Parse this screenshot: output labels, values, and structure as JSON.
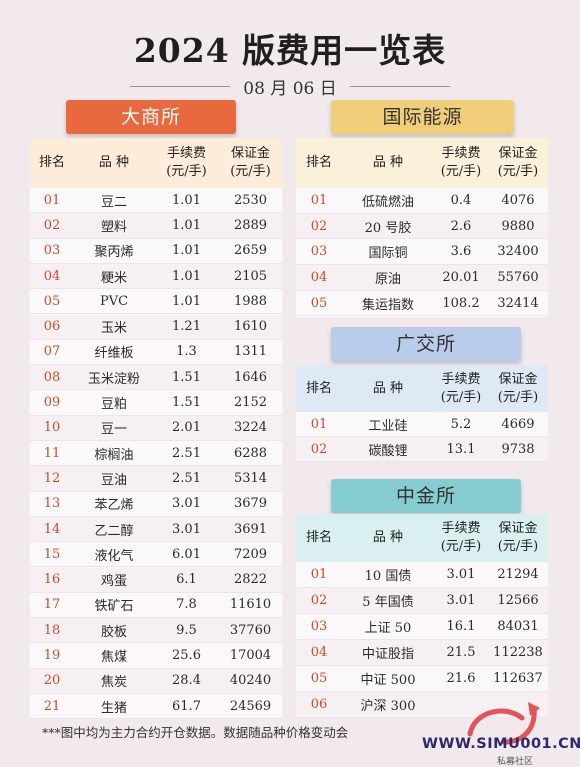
{
  "title": "2024 版费用一览表",
  "date": "08 月 06 日",
  "dalian": {
    "name": "大商所",
    "headers": {
      "rank": "排名",
      "variety": "品 种",
      "fee": [
        "手续费",
        "(元/手)"
      ],
      "margin": [
        "保证金",
        "(元/手)"
      ]
    },
    "rows": [
      {
        "rank": "01",
        "variety": "豆二",
        "fee": "1.01",
        "margin": "2530"
      },
      {
        "rank": "02",
        "variety": "塑料",
        "fee": "1.01",
        "margin": "2889"
      },
      {
        "rank": "03",
        "variety": "聚丙烯",
        "fee": "1.01",
        "margin": "2659"
      },
      {
        "rank": "04",
        "variety": "粳米",
        "fee": "1.01",
        "margin": "2105"
      },
      {
        "rank": "05",
        "variety": "PVC",
        "fee": "1.01",
        "margin": "1988"
      },
      {
        "rank": "06",
        "variety": "玉米",
        "fee": "1.21",
        "margin": "1610"
      },
      {
        "rank": "07",
        "variety": "纤维板",
        "fee": "1.3",
        "margin": "1311"
      },
      {
        "rank": "08",
        "variety": "玉米淀粉",
        "fee": "1.51",
        "margin": "1646"
      },
      {
        "rank": "09",
        "variety": "豆粕",
        "fee": "1.51",
        "margin": "2152"
      },
      {
        "rank": "10",
        "variety": "豆一",
        "fee": "2.01",
        "margin": "3224"
      },
      {
        "rank": "11",
        "variety": "棕榈油",
        "fee": "2.51",
        "margin": "6288"
      },
      {
        "rank": "12",
        "variety": "豆油",
        "fee": "2.51",
        "margin": "5314"
      },
      {
        "rank": "13",
        "variety": "苯乙烯",
        "fee": "3.01",
        "margin": "3679"
      },
      {
        "rank": "14",
        "variety": "乙二醇",
        "fee": "3.01",
        "margin": "3691"
      },
      {
        "rank": "15",
        "variety": "液化气",
        "fee": "6.01",
        "margin": "7209"
      },
      {
        "rank": "16",
        "variety": "鸡蛋",
        "fee": "6.1",
        "margin": "2822"
      },
      {
        "rank": "17",
        "variety": "铁矿石",
        "fee": "7.8",
        "margin": "11610"
      },
      {
        "rank": "18",
        "variety": "胶板",
        "fee": "9.5",
        "margin": "37760"
      },
      {
        "rank": "19",
        "variety": "焦煤",
        "fee": "25.6",
        "margin": "17004"
      },
      {
        "rank": "20",
        "variety": "焦炭",
        "fee": "28.4",
        "margin": "40240"
      },
      {
        "rank": "21",
        "variety": "生猪",
        "fee": "61.7",
        "margin": "24569"
      }
    ]
  },
  "intl": {
    "name": "国际能源",
    "headers": {
      "rank": "排名",
      "variety": "品 种",
      "fee": [
        "手续费",
        "(元/手)"
      ],
      "margin": [
        "保证金",
        "(元/手)"
      ]
    },
    "rows": [
      {
        "rank": "01",
        "variety": "低硫燃油",
        "fee": "0.4",
        "margin": "4076"
      },
      {
        "rank": "02",
        "variety": "20 号胶",
        "fee": "2.6",
        "margin": "9880"
      },
      {
        "rank": "03",
        "variety": "国际铜",
        "fee": "3.6",
        "margin": "32400"
      },
      {
        "rank": "04",
        "variety": "原油",
        "fee": "20.01",
        "margin": "55760"
      },
      {
        "rank": "05",
        "variety": "集运指数",
        "fee": "108.2",
        "margin": "32414"
      }
    ]
  },
  "guang": {
    "name": "广交所",
    "headers": {
      "rank": "排名",
      "variety": "品 种",
      "fee": [
        "手续费",
        "(元/手)"
      ],
      "margin": [
        "保证金",
        "(元/手)"
      ]
    },
    "rows": [
      {
        "rank": "01",
        "variety": "工业硅",
        "fee": "5.2",
        "margin": "4669"
      },
      {
        "rank": "02",
        "variety": "碳酸锂",
        "fee": "13.1",
        "margin": "9738"
      }
    ]
  },
  "zhongjin": {
    "name": "中金所",
    "headers": {
      "rank": "排名",
      "variety": "品 种",
      "fee": [
        "手续费",
        "(元/手)"
      ],
      "margin": [
        "保证金",
        "(元/手)"
      ]
    },
    "rows": [
      {
        "rank": "01",
        "variety": "10 国债",
        "fee": "3.01",
        "margin": "21294"
      },
      {
        "rank": "02",
        "variety": "5 年国债",
        "fee": "3.01",
        "margin": "12566"
      },
      {
        "rank": "03",
        "variety": "上证 50",
        "fee": "16.1",
        "margin": "84031"
      },
      {
        "rank": "04",
        "variety": "中证股指",
        "fee": "21.5",
        "margin": "112238"
      },
      {
        "rank": "05",
        "variety": "中证 500",
        "fee": "21.6",
        "margin": "112637"
      },
      {
        "rank": "06",
        "variety": "沪深 300",
        "fee": "",
        "margin": ""
      }
    ]
  },
  "footer": "***图中均为主力合约开仓数据。数据随品种价格变动会",
  "watermark": {
    "text": "WWW.SIMU001.CN",
    "sub": "私募社区",
    "color": "#e2545b"
  }
}
